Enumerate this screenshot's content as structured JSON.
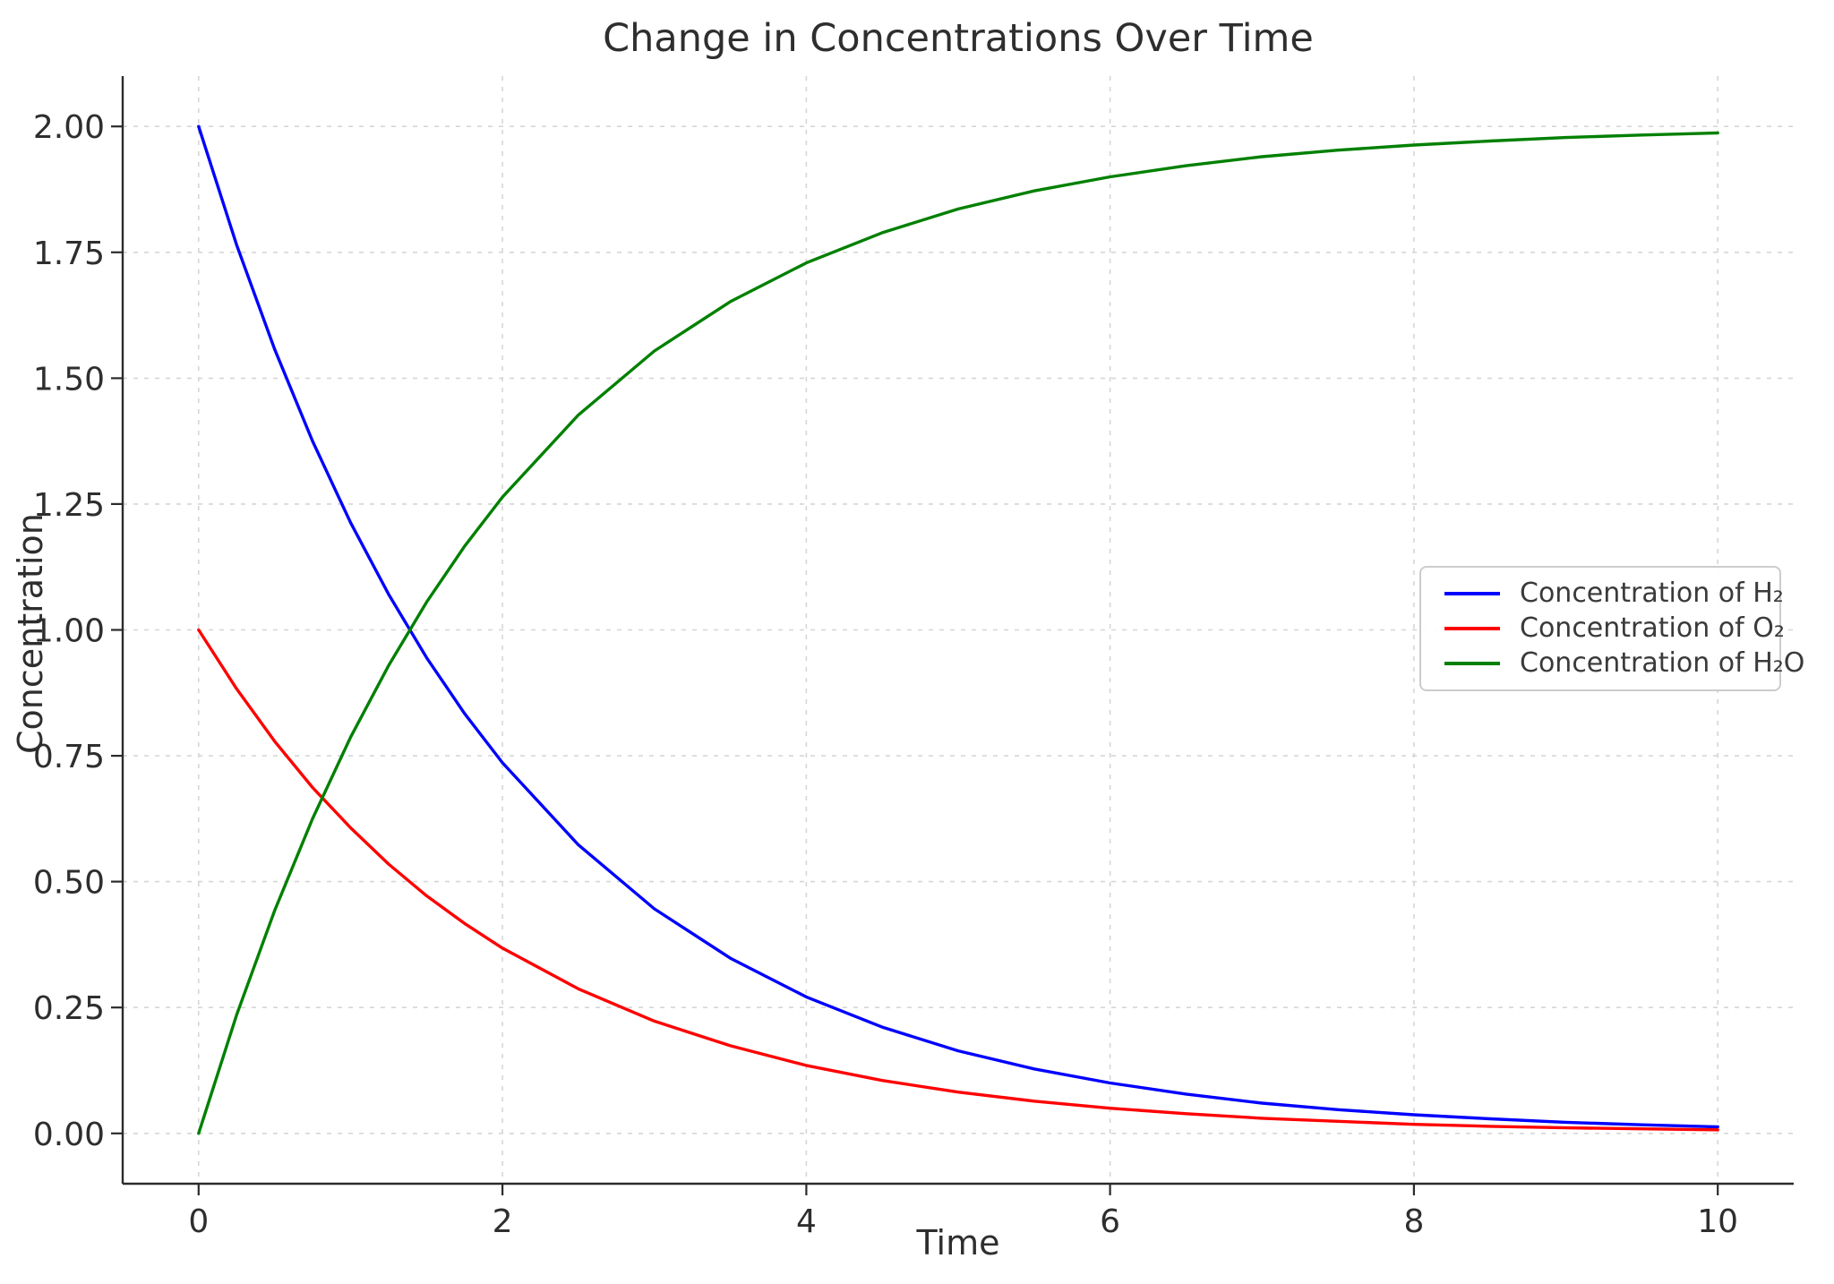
{
  "chart_data": {
    "type": "line",
    "title": "Change in Concentrations Over Time",
    "xlabel": "Time",
    "ylabel": "Concentration",
    "xlim": [
      -0.5,
      10.5
    ],
    "ylim": [
      -0.1,
      2.1
    ],
    "grid": true,
    "legend_position": "center-right",
    "xticks": [
      0,
      2,
      4,
      6,
      8,
      10
    ],
    "xtick_labels": [
      "0",
      "2",
      "4",
      "6",
      "8",
      "10"
    ],
    "yticks": [
      0,
      0.25,
      0.5,
      0.75,
      1.0,
      1.25,
      1.5,
      1.75,
      2.0
    ],
    "ytick_labels": [
      "0.00",
      "0.25",
      "0.50",
      "0.75",
      "1.00",
      "1.25",
      "1.50",
      "1.75",
      "2.00"
    ],
    "x": [
      0,
      0.25,
      0.5,
      0.75,
      1,
      1.25,
      1.5,
      1.75,
      2,
      2.5,
      3,
      3.5,
      4,
      4.5,
      5,
      5.5,
      6,
      6.5,
      7,
      7.5,
      8,
      8.5,
      9,
      9.5,
      10
    ],
    "series": [
      {
        "id": "h2",
        "name": "Concentration of H₂",
        "color": "#0000ff",
        "values": [
          2.0,
          1.765,
          1.558,
          1.375,
          1.213,
          1.071,
          0.945,
          0.834,
          0.736,
          0.573,
          0.446,
          0.348,
          0.271,
          0.211,
          0.164,
          0.128,
          0.1,
          0.078,
          0.06,
          0.047,
          0.037,
          0.029,
          0.022,
          0.017,
          0.013
        ]
      },
      {
        "id": "o2",
        "name": "Concentration of O₂",
        "color": "#ff0000",
        "values": [
          1.0,
          0.883,
          0.779,
          0.687,
          0.607,
          0.535,
          0.472,
          0.417,
          0.368,
          0.287,
          0.223,
          0.174,
          0.135,
          0.105,
          0.082,
          0.064,
          0.05,
          0.039,
          0.03,
          0.024,
          0.018,
          0.014,
          0.011,
          0.009,
          0.007
        ]
      },
      {
        "id": "h2o",
        "name": "Concentration of H₂O",
        "color": "#008000",
        "values": [
          0.0,
          0.235,
          0.442,
          0.625,
          0.787,
          0.929,
          1.055,
          1.166,
          1.264,
          1.427,
          1.554,
          1.652,
          1.729,
          1.789,
          1.836,
          1.872,
          1.9,
          1.922,
          1.94,
          1.953,
          1.963,
          1.971,
          1.978,
          1.983,
          1.987
        ]
      }
    ]
  }
}
